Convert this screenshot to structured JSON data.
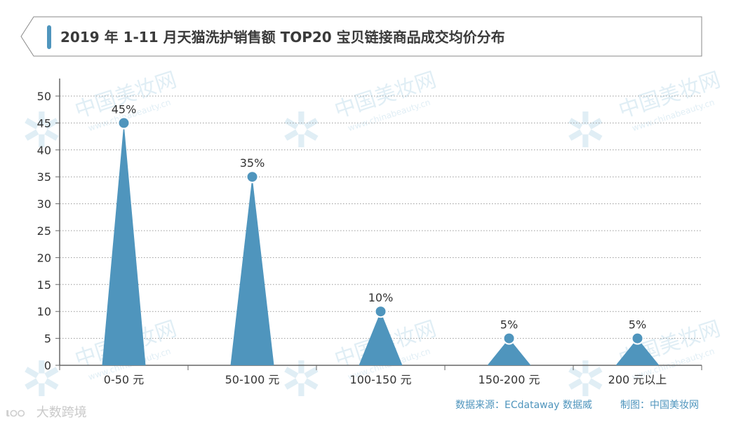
{
  "header": {
    "title": "2019 年 1-11 月天猫洗护销售额 TOP20 宝贝链接商品成交均价分布"
  },
  "footer": {
    "source": "数据来源：ECdataway 数据威",
    "maker": "制图：中国美妆网"
  },
  "watermark": {
    "brand": "中国美妆网",
    "url": "www.chinabeauty.cn"
  },
  "corner_logo": {
    "mark": "ι੦੦",
    "text": "大数跨境"
  },
  "colors": {
    "series": "#4f95bd",
    "axis": "#666666",
    "grid": "#9a9a9a",
    "title": "#3a3a3a",
    "note": "#4f95bd"
  },
  "chart_data": {
    "type": "bar",
    "categories": [
      "0-50 元",
      "50-100 元",
      "100-150 元",
      "150-200 元",
      "200 元以上"
    ],
    "values": [
      45,
      35,
      10,
      5,
      5
    ],
    "value_labels": [
      "45%",
      "35%",
      "10%",
      "5%",
      "5%"
    ],
    "yticks": [
      0,
      5,
      10,
      15,
      20,
      25,
      30,
      35,
      40,
      45,
      50
    ],
    "ylim": [
      0,
      50
    ],
    "grid": true
  }
}
